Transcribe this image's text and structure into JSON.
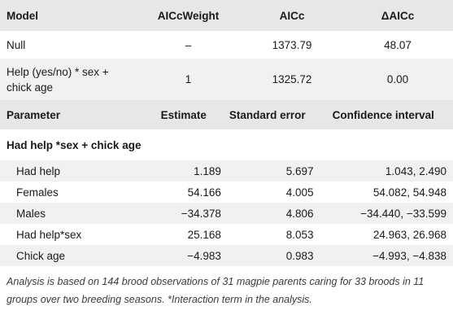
{
  "model_table": {
    "headers": [
      "Model",
      "AICcWeight",
      "AICc",
      "ΔAICc"
    ],
    "rows": [
      [
        "Null",
        "–",
        "1373.79",
        "48.07"
      ],
      [
        "Help (yes/no) * sex +\nchick age",
        "1",
        "1325.72",
        "0.00"
      ]
    ]
  },
  "param_table": {
    "headers": [
      "Parameter",
      "Estimate",
      "Standard error",
      "Confidence interval"
    ],
    "section_title": "Had help *sex + chick age",
    "rows": [
      [
        "Had help",
        "1.189",
        "5.697",
        "1.043, 2.490"
      ],
      [
        "Females",
        "54.166",
        "4.005",
        "54.082, 54.948"
      ],
      [
        "Males",
        "−34.378",
        "4.806",
        "−34.440, −33.599"
      ],
      [
        "Had help*sex",
        "25.168",
        "8.053",
        "24.963, 26.968"
      ],
      [
        "Chick age",
        "−4.983",
        "0.983",
        "−4.993, −4.838"
      ]
    ]
  },
  "footnote": "Analysis is based on 144 brood observations of 31 magpie parents caring for 33 broods in 11 groups over two breeding seasons. *Interaction term in the analysis.",
  "colors": {
    "header_band": "#e7e7e8",
    "alt_row": "#f1f1f2",
    "text": "#1a1a1a"
  }
}
